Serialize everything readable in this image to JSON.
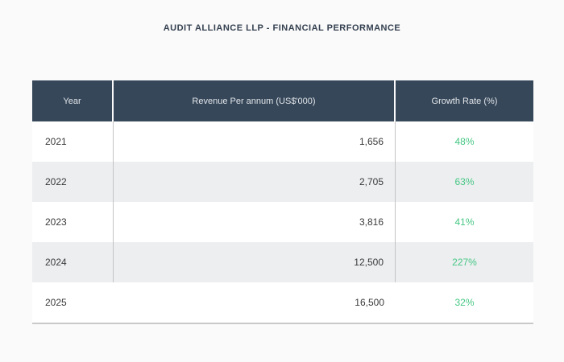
{
  "page": {
    "background": "#fafafa"
  },
  "title": "AUDIT ALLIANCE LLP - FINANCIAL PERFORMANCE",
  "table": {
    "columns": {
      "year": "Year",
      "revenue": "Revenue Per annum (US$'000)",
      "growth": "Growth Rate (%)"
    },
    "rows": [
      {
        "year": "2021",
        "revenue": "1,656",
        "growth": "48%"
      },
      {
        "year": "2022",
        "revenue": "2,705",
        "growth": "63%"
      },
      {
        "year": "2023",
        "revenue": "3,816",
        "growth": "41%"
      },
      {
        "year": "2024",
        "revenue": "12,500",
        "growth": "227%"
      },
      {
        "year": "2025",
        "revenue": "16,500",
        "growth": "32%"
      }
    ]
  },
  "colors": {
    "header_bg": "#36475a",
    "header_text": "#e3e6e9",
    "growth_green": "#47c784",
    "row_alt_bg": "#eceef0",
    "row_bg": "#ffffff",
    "divider": "#c4c4c4",
    "title_text": "#344050",
    "page_bg": "#fafafa"
  },
  "chart_data": {
    "type": "table",
    "title": "AUDIT ALLIANCE LLP - FINANCIAL PERFORMANCE",
    "columns": [
      "Year",
      "Revenue Per annum (US$'000)",
      "Growth Rate (%)"
    ],
    "rows": [
      [
        "2021",
        1656,
        "48%"
      ],
      [
        "2022",
        2705,
        "63%"
      ],
      [
        "2023",
        3816,
        "41%"
      ],
      [
        "2024",
        12500,
        "227%"
      ],
      [
        "2025",
        16500,
        "32%"
      ]
    ],
    "notes": {
      "revenue_alignment": "right",
      "growth_alignment": "center",
      "zebra_striping": true,
      "legend_position": "none",
      "grid": "column dividers on rows 1-4, bottom rule under table"
    }
  }
}
